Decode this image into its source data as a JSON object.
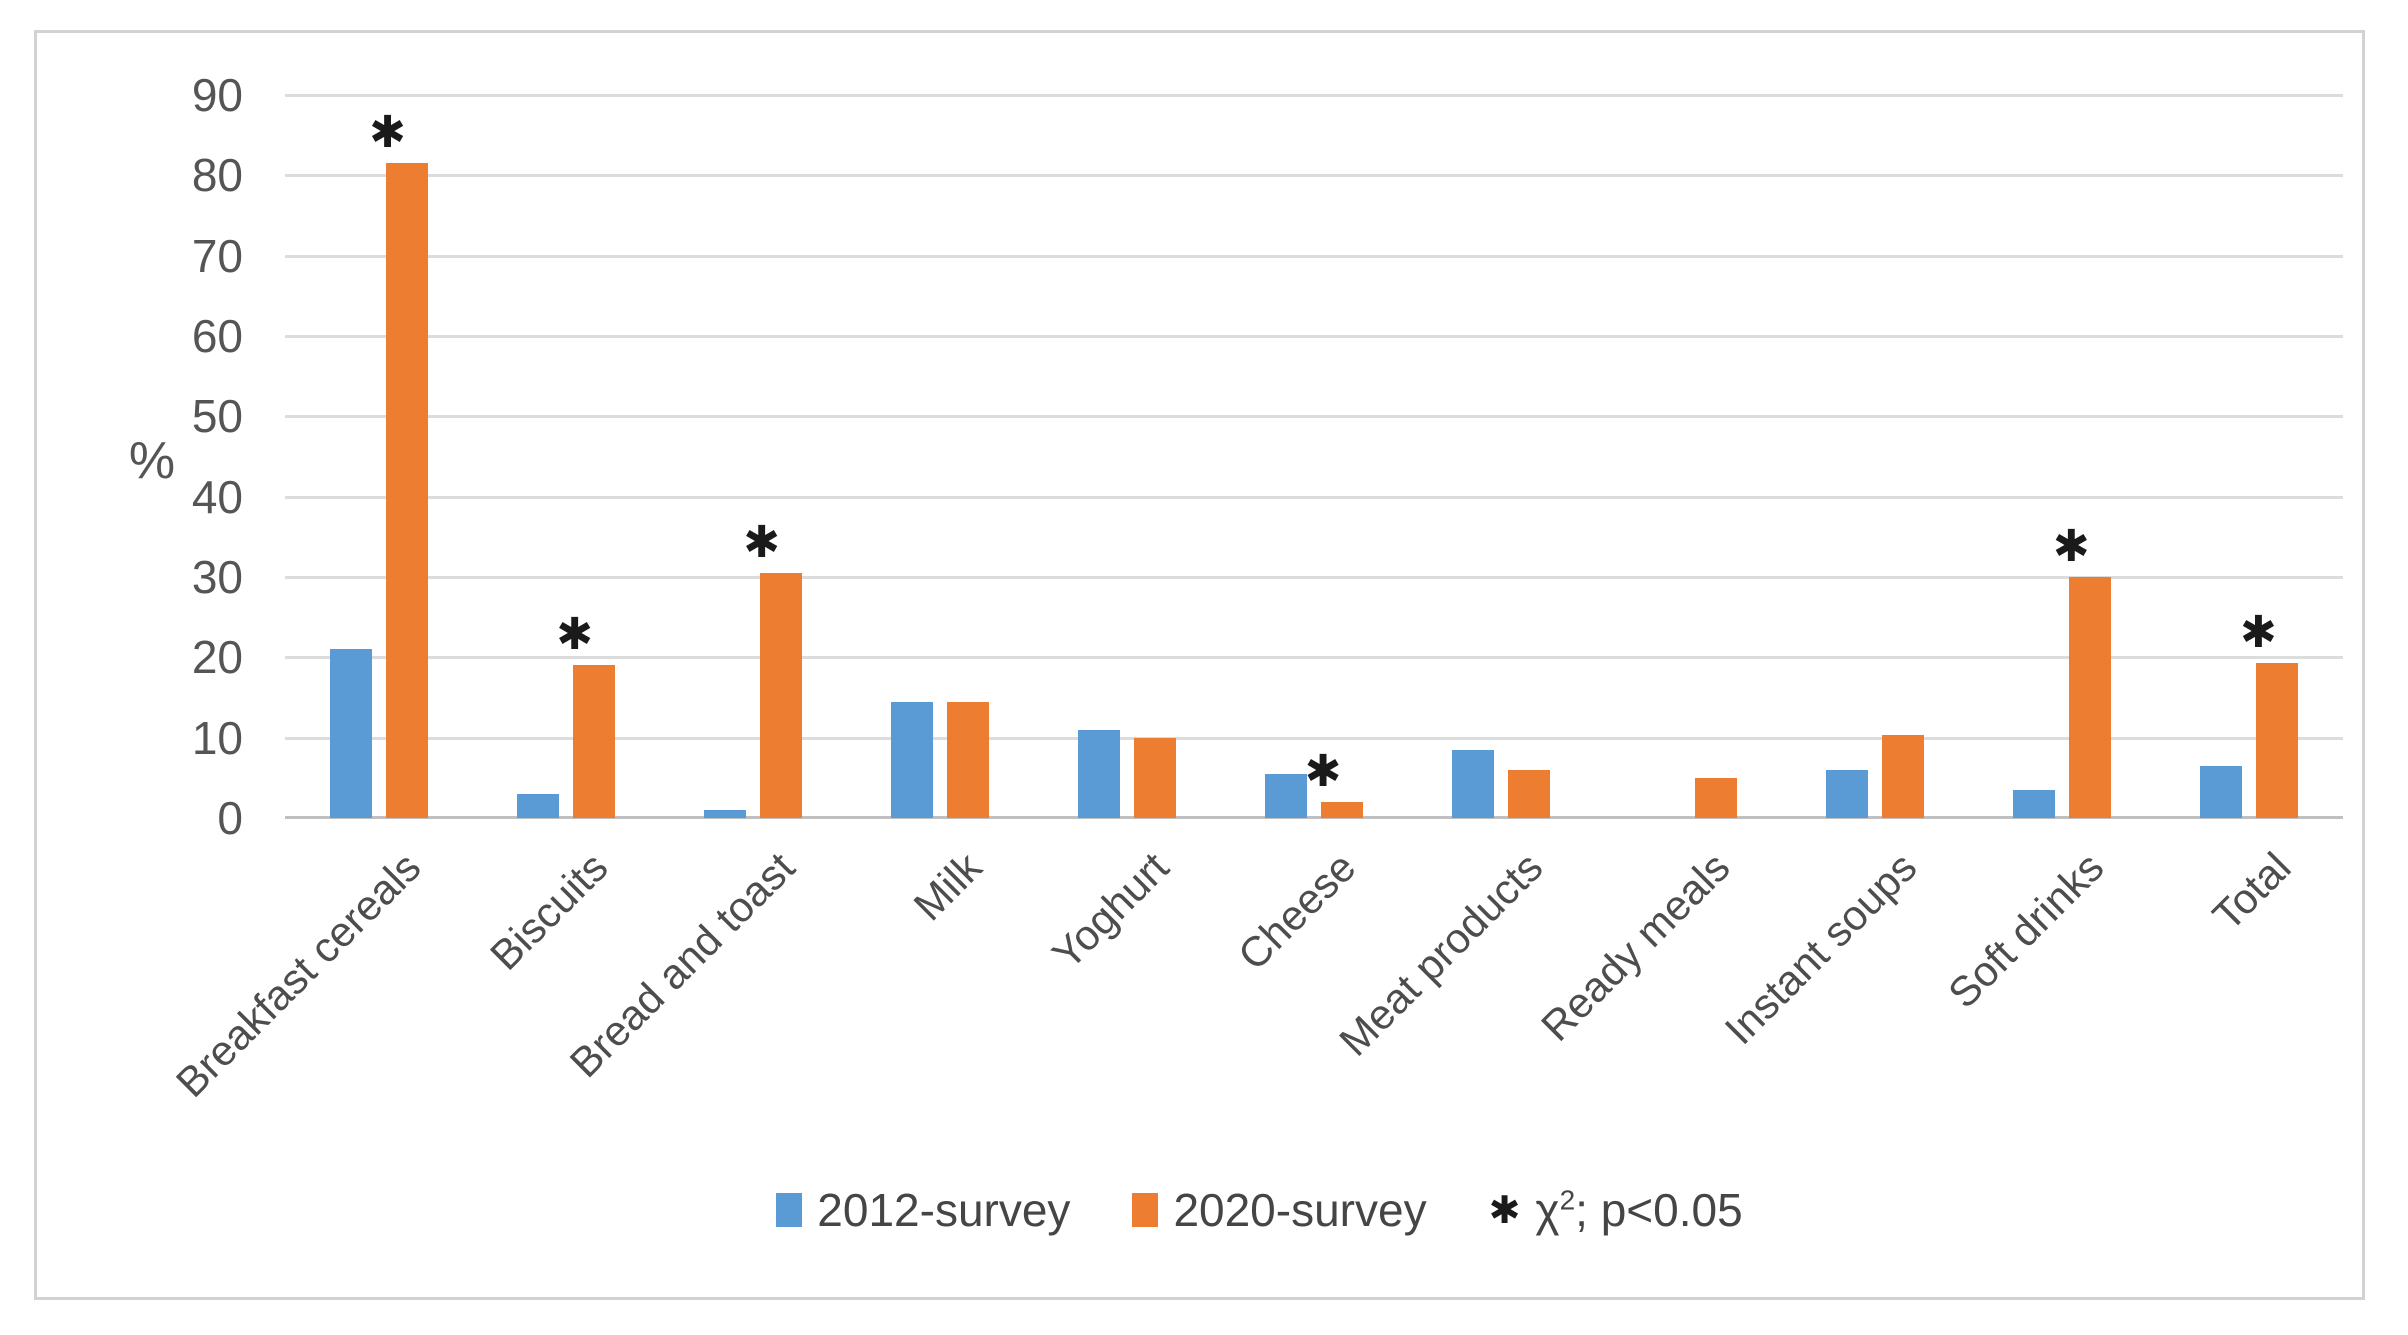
{
  "figure": {
    "background": "#ffffff",
    "border_color": "#d2d2d2"
  },
  "axis": {
    "unit_label": "%",
    "ticks": [
      "90",
      "80",
      "70",
      "60",
      "50",
      "40",
      "30",
      "20",
      "10",
      "0"
    ],
    "max": 90,
    "step": 10
  },
  "legend": {
    "series": [
      {
        "label": "2012-survey",
        "color": "#5B9BD5"
      },
      {
        "label": "2020-survey",
        "color": "#ED7D31"
      }
    ],
    "significance": {
      "symbol": "✱",
      "chi": "χ",
      "sup": "2",
      "rest": "; p<0.05"
    }
  },
  "chart_data": {
    "type": "bar",
    "title": "",
    "xlabel": "",
    "ylabel": "%",
    "ylim": [
      0,
      90
    ],
    "ytick_step": 10,
    "grid": true,
    "legend_position": "bottom",
    "categories": [
      "Breakfast cereals",
      "Biscuits",
      "Bread and toast",
      "Milk",
      "Yoghurt",
      "Cheese",
      "Meat products",
      "Ready meals",
      "Instant soups",
      "Soft drinks",
      "Total"
    ],
    "series": [
      {
        "name": "2012-survey",
        "color": "#5B9BD5",
        "values": [
          21,
          3,
          1,
          14.5,
          11,
          5.5,
          8.5,
          0,
          6,
          3.5,
          6.5
        ]
      },
      {
        "name": "2020-survey",
        "color": "#ED7D31",
        "values": [
          81.5,
          19,
          30.5,
          14.5,
          10,
          2,
          6,
          5,
          10.3,
          30,
          19.3
        ]
      }
    ],
    "significance_flags": [
      true,
      true,
      true,
      false,
      false,
      true,
      false,
      false,
      false,
      true,
      true
    ],
    "significance_marker": "✱",
    "annotation": "✱ χ2; p<0.05"
  }
}
